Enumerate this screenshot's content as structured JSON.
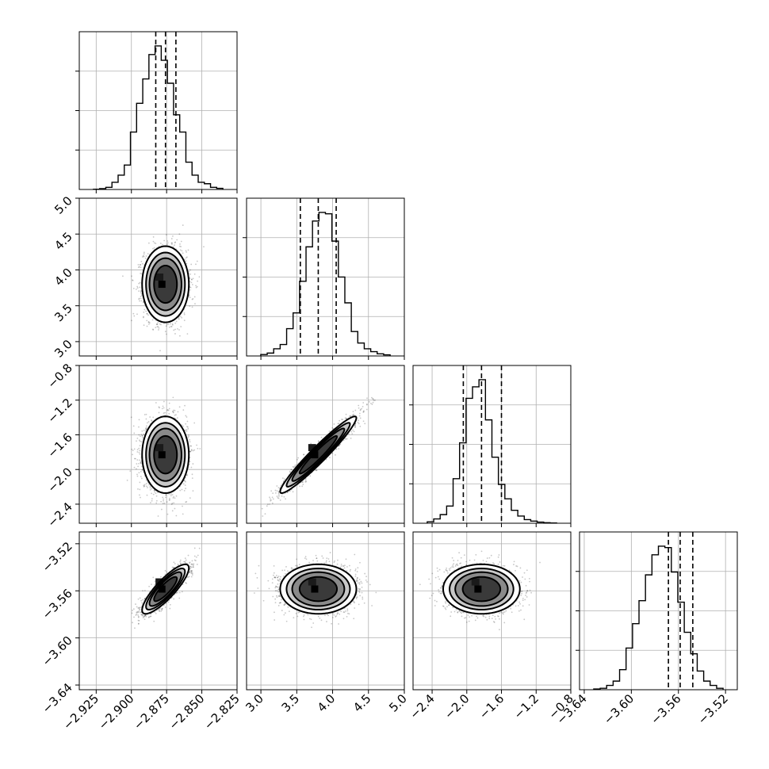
{
  "chart_data": {
    "type": "corner",
    "parameters": [
      {
        "id": "p1",
        "range": [
          -2.937,
          -2.825
        ],
        "ticks": [
          -2.925,
          -2.9,
          -2.875,
          -2.85,
          -2.825
        ],
        "tick_labels": [
          "−2.925",
          "−2.900",
          "−2.875",
          "−2.850",
          "−2.825"
        ],
        "median": -2.8758,
        "sigma": 0.0075,
        "quantiles": [
          -2.8827,
          -2.8758,
          -2.8684
        ],
        "hist_values": [
          0.002,
          0.006,
          0.015,
          0.05,
          0.1,
          0.17,
          0.4,
          0.6,
          0.77,
          0.94,
          1.0,
          0.9,
          0.74,
          0.52,
          0.4,
          0.19,
          0.1,
          0.05,
          0.04,
          0.015,
          0.008
        ]
      },
      {
        "id": "p2",
        "range": [
          2.8,
          5.0
        ],
        "ticks": [
          3.0,
          3.5,
          4.0,
          4.5,
          5.0
        ],
        "tick_labels": [
          "3.0",
          "3.5",
          "4.0",
          "4.5",
          "5.0"
        ],
        "median": 3.8,
        "sigma": 0.24,
        "quantiles": [
          3.55,
          3.8,
          4.05
        ],
        "hist_values": [
          0.01,
          0.02,
          0.05,
          0.08,
          0.19,
          0.3,
          0.52,
          0.76,
          0.94,
          1.0,
          0.99,
          0.8,
          0.55,
          0.37,
          0.17,
          0.09,
          0.05,
          0.03,
          0.015,
          0.008
        ]
      },
      {
        "id": "p3",
        "range": [
          -2.62,
          -0.8
        ],
        "ticks": [
          -2.4,
          -2.0,
          -1.6,
          -1.2,
          -0.8
        ],
        "tick_labels": [
          "−2.4",
          "−2.0",
          "−1.6",
          "−1.2",
          "−0.8"
        ],
        "median": -1.83,
        "sigma": 0.2,
        "quantiles": [
          -2.04,
          -1.83,
          -1.6
        ],
        "hist_values": [
          0.01,
          0.03,
          0.06,
          0.12,
          0.31,
          0.56,
          0.87,
          0.95,
          1.0,
          0.72,
          0.46,
          0.27,
          0.17,
          0.09,
          0.05,
          0.025,
          0.015,
          0.008,
          0.004,
          0.002
        ]
      },
      {
        "id": "p4",
        "range": [
          -3.644,
          -3.51
        ],
        "ticks": [
          -3.64,
          -3.6,
          -3.56,
          -3.52
        ],
        "tick_labels": [
          "−3.64",
          "−3.60",
          "−3.56",
          "−3.52"
        ],
        "median": -3.5585,
        "sigma": 0.0095,
        "quantiles": [
          -3.5685,
          -3.5585,
          -3.5478
        ],
        "hist_values": [
          0.005,
          0.01,
          0.03,
          0.06,
          0.14,
          0.29,
          0.46,
          0.62,
          0.8,
          0.94,
          1.0,
          0.99,
          0.82,
          0.61,
          0.4,
          0.25,
          0.13,
          0.06,
          0.03,
          0.01
        ]
      }
    ],
    "histogram_y_ticks": [
      0.25,
      0.5,
      0.75
    ],
    "correlations": {
      "2-1": 0.0,
      "3-1": 0.0,
      "3-2": 0.96,
      "4-1": 0.85,
      "4-2": 0.0,
      "4-3": 0.0
    },
    "contour_levels_sigma": [
      0.5,
      1.0,
      1.5,
      2.0
    ],
    "grid": true,
    "quantile_lines": "dashed",
    "colors": {
      "points": "#000000",
      "line": "#000000",
      "grid": "#b0b0b0"
    }
  }
}
